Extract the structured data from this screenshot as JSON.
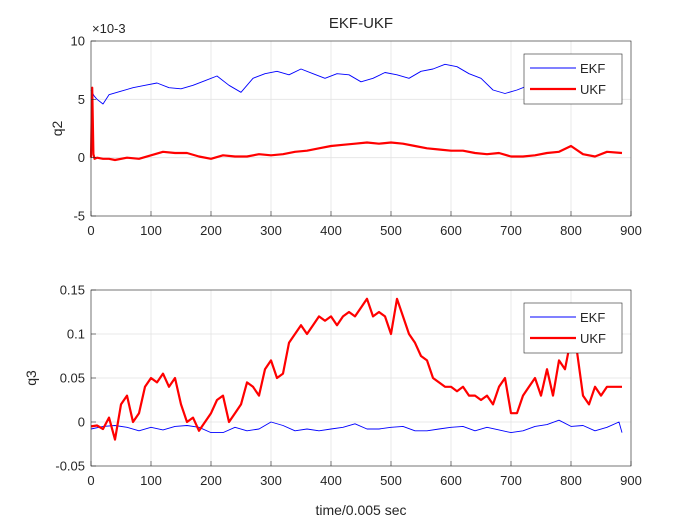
{
  "chart_data": [
    {
      "type": "line",
      "title": "EKF-UKF",
      "xlabel": "",
      "ylabel": "q2",
      "exponent_label": "×10-3",
      "xlim": [
        0,
        900
      ],
      "ylim": [
        -5,
        10
      ],
      "xticks": [
        0,
        100,
        200,
        300,
        400,
        500,
        600,
        700,
        800,
        900
      ],
      "yticks": [
        -5,
        0,
        5,
        10
      ],
      "grid": true,
      "legend": "top-right",
      "series": [
        {
          "name": "EKF",
          "color": "#0000ff",
          "x": [
            0,
            5,
            10,
            20,
            30,
            50,
            70,
            90,
            110,
            130,
            150,
            170,
            190,
            210,
            230,
            250,
            270,
            290,
            310,
            330,
            350,
            370,
            390,
            410,
            430,
            450,
            470,
            490,
            510,
            530,
            550,
            570,
            590,
            610,
            630,
            650,
            670,
            690,
            710,
            730,
            750,
            770,
            790,
            810,
            830,
            850,
            870,
            885
          ],
          "values": [
            5.8,
            5.3,
            5.0,
            4.6,
            5.4,
            5.7,
            6.0,
            6.2,
            6.4,
            6.0,
            5.9,
            6.2,
            6.6,
            7.0,
            6.2,
            5.6,
            6.8,
            7.2,
            7.4,
            7.1,
            7.6,
            7.2,
            6.8,
            7.2,
            7.1,
            6.5,
            6.8,
            7.3,
            7.1,
            6.8,
            7.4,
            7.6,
            8.0,
            7.8,
            7.2,
            6.8,
            5.8,
            5.5,
            5.8,
            6.2,
            6.8,
            6.5,
            7.0,
            7.8,
            7.4,
            7.0,
            7.2,
            7.5
          ]
        },
        {
          "name": "UKF",
          "color": "#ff0000",
          "x": [
            0,
            2,
            4,
            6,
            10,
            20,
            30,
            40,
            60,
            80,
            100,
            120,
            140,
            160,
            180,
            200,
            220,
            240,
            260,
            280,
            300,
            320,
            340,
            360,
            380,
            400,
            420,
            440,
            460,
            480,
            500,
            520,
            540,
            560,
            580,
            600,
            620,
            640,
            660,
            680,
            700,
            720,
            740,
            760,
            780,
            800,
            820,
            840,
            860,
            885
          ],
          "values": [
            0,
            6.0,
            0.3,
            -0.1,
            0,
            -0.1,
            -0.1,
            -0.2,
            0,
            -0.1,
            0.2,
            0.5,
            0.4,
            0.4,
            0.1,
            -0.1,
            0.2,
            0.1,
            0.1,
            0.3,
            0.2,
            0.3,
            0.5,
            0.6,
            0.8,
            1.0,
            1.1,
            1.2,
            1.3,
            1.2,
            1.3,
            1.2,
            1.0,
            0.8,
            0.7,
            0.6,
            0.6,
            0.4,
            0.3,
            0.4,
            0.1,
            0.1,
            0.2,
            0.4,
            0.5,
            1.0,
            0.3,
            0.1,
            0.5,
            0.4
          ]
        }
      ]
    },
    {
      "type": "line",
      "title": "",
      "xlabel": "time/0.005 sec",
      "ylabel": "q3",
      "xlim": [
        0,
        900
      ],
      "ylim": [
        -0.05,
        0.15
      ],
      "xticks": [
        0,
        100,
        200,
        300,
        400,
        500,
        600,
        700,
        800,
        900
      ],
      "yticks": [
        -0.05,
        0,
        0.05,
        0.1,
        0.15
      ],
      "grid": true,
      "legend": "top-right",
      "series": [
        {
          "name": "EKF",
          "color": "#0000ff",
          "x": [
            0,
            20,
            40,
            60,
            80,
            100,
            120,
            140,
            160,
            180,
            200,
            220,
            240,
            260,
            280,
            300,
            320,
            340,
            360,
            380,
            400,
            420,
            440,
            460,
            480,
            500,
            520,
            540,
            560,
            580,
            600,
            620,
            640,
            660,
            680,
            700,
            720,
            740,
            760,
            780,
            800,
            820,
            840,
            860,
            880,
            885
          ],
          "values": [
            -0.008,
            -0.005,
            -0.004,
            -0.006,
            -0.01,
            -0.006,
            -0.009,
            -0.005,
            -0.004,
            -0.006,
            -0.012,
            -0.012,
            -0.006,
            -0.01,
            -0.008,
            0,
            -0.004,
            -0.01,
            -0.008,
            -0.01,
            -0.008,
            -0.006,
            -0.002,
            -0.008,
            -0.008,
            -0.006,
            -0.005,
            -0.01,
            -0.01,
            -0.008,
            -0.006,
            -0.005,
            -0.01,
            -0.006,
            -0.009,
            -0.012,
            -0.01,
            -0.005,
            -0.003,
            0.002,
            -0.005,
            -0.004,
            -0.01,
            -0.006,
            0,
            -0.012
          ]
        },
        {
          "name": "UKF",
          "color": "#ff0000",
          "x": [
            0,
            10,
            20,
            30,
            40,
            50,
            60,
            70,
            80,
            90,
            100,
            110,
            120,
            130,
            140,
            150,
            160,
            170,
            180,
            190,
            200,
            210,
            220,
            230,
            240,
            250,
            260,
            270,
            280,
            290,
            300,
            310,
            320,
            330,
            340,
            350,
            360,
            370,
            380,
            390,
            400,
            410,
            420,
            430,
            440,
            450,
            460,
            470,
            480,
            490,
            500,
            510,
            520,
            530,
            540,
            550,
            560,
            570,
            580,
            590,
            600,
            610,
            620,
            630,
            640,
            650,
            660,
            670,
            680,
            690,
            700,
            710,
            720,
            730,
            740,
            750,
            760,
            770,
            780,
            790,
            800,
            810,
            820,
            830,
            840,
            850,
            860,
            870,
            885
          ],
          "values": [
            -0.005,
            -0.004,
            -0.008,
            0.005,
            -0.02,
            0.02,
            0.03,
            0.0,
            0.01,
            0.04,
            0.05,
            0.045,
            0.055,
            0.04,
            0.05,
            0.02,
            0.0,
            0.005,
            -0.01,
            0.0,
            0.01,
            0.025,
            0.03,
            0.0,
            0.01,
            0.02,
            0.045,
            0.04,
            0.03,
            0.06,
            0.07,
            0.05,
            0.055,
            0.09,
            0.1,
            0.11,
            0.1,
            0.11,
            0.12,
            0.115,
            0.12,
            0.11,
            0.12,
            0.125,
            0.12,
            0.13,
            0.14,
            0.12,
            0.125,
            0.12,
            0.1,
            0.14,
            0.12,
            0.1,
            0.09,
            0.075,
            0.07,
            0.05,
            0.045,
            0.04,
            0.04,
            0.035,
            0.04,
            0.03,
            0.03,
            0.025,
            0.03,
            0.02,
            0.04,
            0.05,
            0.01,
            0.01,
            0.03,
            0.04,
            0.05,
            0.03,
            0.06,
            0.03,
            0.07,
            0.06,
            0.095,
            0.08,
            0.03,
            0.02,
            0.04,
            0.03,
            0.04,
            0.04,
            0.04
          ]
        }
      ]
    }
  ]
}
